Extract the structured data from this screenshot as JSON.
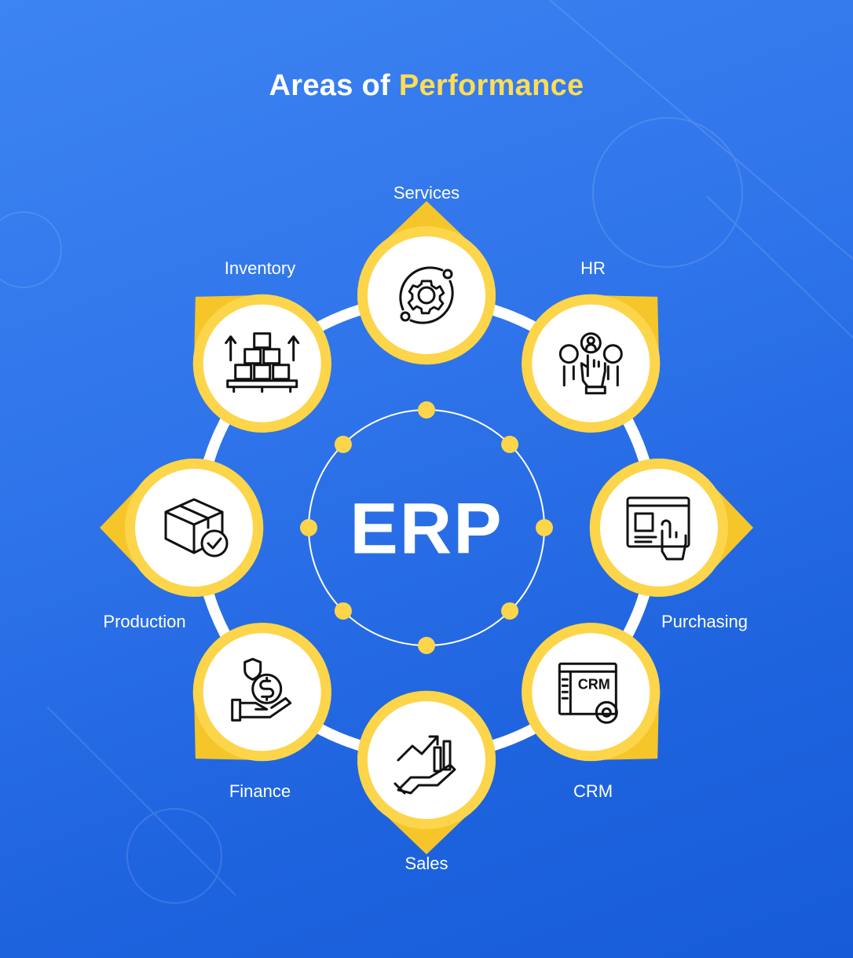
{
  "title": {
    "prefix": "Areas of",
    "highlight": "Performance"
  },
  "center": "ERP",
  "colors": {
    "accent": "#FFDD55",
    "node_ring": "#FDD54A",
    "pointer": "#F5C52A",
    "background": "#2f74ea"
  },
  "nodes": [
    {
      "label": "Services",
      "icon": "gear-orbit-icon"
    },
    {
      "label": "HR",
      "icon": "people-select-hand-icon"
    },
    {
      "label": "Purchasing",
      "icon": "online-purchase-icon"
    },
    {
      "label": "CRM",
      "icon": "crm-window-gear-icon"
    },
    {
      "label": "Sales",
      "icon": "sales-growth-hand-icon"
    },
    {
      "label": "Finance",
      "icon": "money-hand-shield-icon"
    },
    {
      "label": "Production",
      "icon": "box-check-icon"
    },
    {
      "label": "Inventory",
      "icon": "stacked-boxes-icon"
    }
  ]
}
